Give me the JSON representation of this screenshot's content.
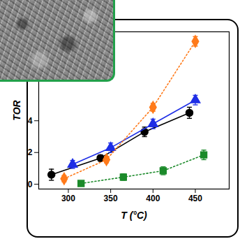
{
  "chart_data": {
    "type": "line",
    "x_label": "T (°C)",
    "y_label": "TOR",
    "xlim": [
      265,
      490
    ],
    "ylim": [
      -0.3,
      9.6
    ],
    "xticks": [
      300,
      350,
      400,
      450
    ],
    "yticks": [
      0,
      2,
      4
    ],
    "grid": false,
    "series": [
      {
        "color": "#000000",
        "marker": "circle",
        "line_style": "solid",
        "x": [
          280,
          338,
          390,
          443
        ],
        "values": [
          0.6,
          1.65,
          3.3,
          4.5
        ],
        "errors": [
          0.35,
          0.2,
          0.3,
          0.35
        ]
      },
      {
        "color": "#1e2ee6",
        "marker": "triangle",
        "line_style": "solid",
        "x": [
          305,
          350,
          400,
          450
        ],
        "values": [
          1.25,
          2.3,
          3.8,
          5.3
        ],
        "errors": [
          0.25,
          0.3,
          0.3,
          0.3
        ]
      },
      {
        "color": "#ff7a1a",
        "marker": "diamond",
        "line_style": "dotted",
        "x": [
          295,
          345,
          400,
          450
        ],
        "values": [
          0.35,
          1.55,
          4.85,
          9.0
        ],
        "errors": [
          0.2,
          0.2,
          0.25,
          0.3
        ]
      },
      {
        "color": "#1b8a2a",
        "marker": "square",
        "line_style": "dotted",
        "x": [
          315,
          365,
          412,
          460
        ],
        "values": [
          0.05,
          0.45,
          0.85,
          1.85
        ],
        "errors": [
          0.1,
          0.2,
          0.25,
          0.3
        ]
      }
    ]
  }
}
